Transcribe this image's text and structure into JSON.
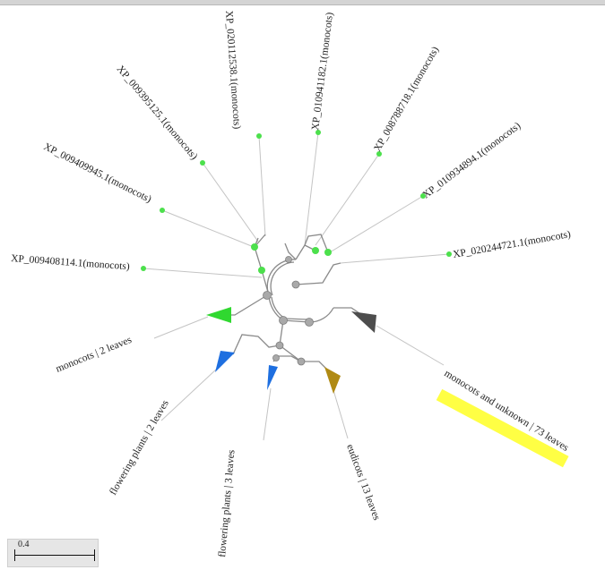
{
  "colors": {
    "leaf_dot": "#4ce04c",
    "internal_node": "#a9a9a9",
    "branch": "#9a9a9a",
    "label_line": "#c4c4c4",
    "clade_monocots": "#30d830",
    "clade_flowering": "#1e6fe0",
    "clade_eudicots": "#b08a14",
    "clade_unknown": "#4d4d4d",
    "highlight": "#ffff44"
  },
  "leaves": [
    {
      "label": "XP_009408114.1(monocots)"
    },
    {
      "label": "XP_009409945.1(monocots)"
    },
    {
      "label": "XP_009395125.1(monocots)"
    },
    {
      "label": "XP_020112538.1(monocots)"
    },
    {
      "label": "XP_010941182.1(monocots)"
    },
    {
      "label": "XP_008788718.1(monocots)"
    },
    {
      "label": "XP_010934894.1(monocots)"
    },
    {
      "label": "XP_020244721.1(monocots)"
    }
  ],
  "clades": [
    {
      "label": "monocots | 2 leaves"
    },
    {
      "label": "flowering plants | 2 leaves"
    },
    {
      "label": "flowering plants | 3 leaves"
    },
    {
      "label": "eudicots | 13 leaves"
    },
    {
      "label": "monocots and unknown | 73 leaves"
    }
  ],
  "scale": {
    "label": "0.4"
  }
}
